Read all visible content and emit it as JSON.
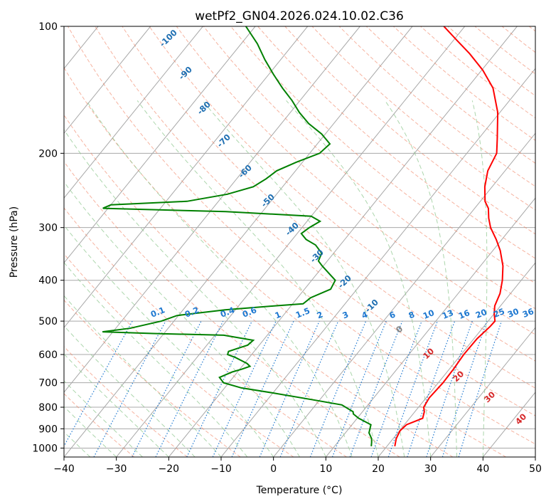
{
  "chart_data": {
    "type": "line",
    "title": "wetPf2_GN04.2026.024.10.02.C36",
    "xlabel": "Temperature (°C)",
    "ylabel": "Pressure (hPa)",
    "xlim": [
      -40,
      50
    ],
    "ylim": [
      1050,
      100
    ],
    "y_scale": "log",
    "grid": true,
    "x_ticks": [
      -40,
      -30,
      -20,
      -10,
      0,
      10,
      20,
      30,
      40,
      50
    ],
    "y_ticks": [
      100,
      200,
      300,
      400,
      500,
      600,
      700,
      800,
      900,
      1000
    ],
    "series": [
      {
        "color": "#ff0000",
        "points": [
          [
            990,
            21.5
          ],
          [
            950,
            20.6
          ],
          [
            910,
            20.1
          ],
          [
            880,
            20.4
          ],
          [
            850,
            22.5
          ],
          [
            820,
            21.8
          ],
          [
            800,
            21.0
          ],
          [
            760,
            20.6
          ],
          [
            700,
            20.9
          ],
          [
            650,
            20.8
          ],
          [
            600,
            20.5
          ],
          [
            550,
            20.6
          ],
          [
            515,
            21.2
          ],
          [
            500,
            21.3
          ],
          [
            480,
            20.0
          ],
          [
            460,
            18.9
          ],
          [
            430,
            18.0
          ],
          [
            400,
            16.4
          ],
          [
            370,
            14.3
          ],
          [
            340,
            11.4
          ],
          [
            320,
            8.9
          ],
          [
            300,
            6.0
          ],
          [
            285,
            4.2
          ],
          [
            270,
            2.6
          ],
          [
            260,
            0.9
          ],
          [
            240,
            -1.4
          ],
          [
            220,
            -3.3
          ],
          [
            200,
            -4.3
          ],
          [
            185,
            -6.4
          ],
          [
            160,
            -10.4
          ],
          [
            140,
            -15.1
          ],
          [
            127,
            -19.8
          ],
          [
            116,
            -24.9
          ],
          [
            108,
            -29.3
          ],
          [
            100,
            -34.0
          ]
        ]
      },
      {
        "color": "#008000",
        "points": [
          [
            990,
            17.0
          ],
          [
            970,
            16.5
          ],
          [
            950,
            15.9
          ],
          [
            920,
            14.5
          ],
          [
            880,
            13.6
          ],
          [
            850,
            10.3
          ],
          [
            830,
            8.6
          ],
          [
            820,
            8.2
          ],
          [
            790,
            5.0
          ],
          [
            770,
            -0.8
          ],
          [
            740,
            -10.0
          ],
          [
            720,
            -16.8
          ],
          [
            700,
            -21.0
          ],
          [
            680,
            -22.6
          ],
          [
            660,
            -21.0
          ],
          [
            650,
            -19.6
          ],
          [
            640,
            -18.5
          ],
          [
            630,
            -19.5
          ],
          [
            610,
            -22.6
          ],
          [
            600,
            -24.6
          ],
          [
            590,
            -24.9
          ],
          [
            580,
            -23.6
          ],
          [
            570,
            -22.2
          ],
          [
            555,
            -21.9
          ],
          [
            540,
            -28.3
          ],
          [
            535,
            -42.0
          ],
          [
            530,
            -52.0
          ],
          [
            520,
            -47.3
          ],
          [
            500,
            -42.4
          ],
          [
            485,
            -40.3
          ],
          [
            470,
            -32.0
          ],
          [
            460,
            -23.0
          ],
          [
            455,
            -18.0
          ],
          [
            440,
            -17.5
          ],
          [
            420,
            -15.0
          ],
          [
            400,
            -15.5
          ],
          [
            385,
            -17.8
          ],
          [
            370,
            -20.2
          ],
          [
            360,
            -21.7
          ],
          [
            345,
            -22.3
          ],
          [
            330,
            -24.7
          ],
          [
            320,
            -27.4
          ],
          [
            310,
            -29.2
          ],
          [
            300,
            -28.6
          ],
          [
            290,
            -27.5
          ],
          [
            282,
            -30.0
          ],
          [
            275,
            -47.0
          ],
          [
            270,
            -71.0
          ],
          [
            265,
            -70.0
          ],
          [
            260,
            -56.0
          ],
          [
            250,
            -49.4
          ],
          [
            240,
            -45.6
          ],
          [
            230,
            -44.4
          ],
          [
            220,
            -43.6
          ],
          [
            210,
            -41.2
          ],
          [
            200,
            -38.1
          ],
          [
            190,
            -37.6
          ],
          [
            180,
            -40.7
          ],
          [
            170,
            -44.8
          ],
          [
            160,
            -48.3
          ],
          [
            150,
            -51.5
          ],
          [
            140,
            -55.3
          ],
          [
            130,
            -59.1
          ],
          [
            120,
            -63.0
          ],
          [
            110,
            -66.9
          ],
          [
            100,
            -71.8
          ]
        ]
      }
    ],
    "dry_adiabat_labels": [
      -100,
      -90,
      -80,
      -70,
      -60,
      -50,
      -40,
      -30,
      -20,
      -10,
      0,
      10,
      20,
      30,
      40
    ],
    "mixing_ratio_labels": [
      "0.1",
      "0.2",
      "0.4",
      "0.6",
      "1",
      "1.5",
      "2",
      "3",
      "4",
      "6",
      "8",
      "10",
      "13",
      "16",
      "20",
      "25",
      "30",
      "36"
    ],
    "colors": {
      "temperature": "#ff0000",
      "dewpoint": "#008000",
      "isotherm": "#a8a8a8",
      "dry_adiabat": "#f08060",
      "moist_adiabat": "#90c890",
      "mixing_ratio": "#1e78d0",
      "cold_label": "#1f6fb2",
      "warm_label": "#d62728",
      "zero_label": "#808080"
    }
  }
}
